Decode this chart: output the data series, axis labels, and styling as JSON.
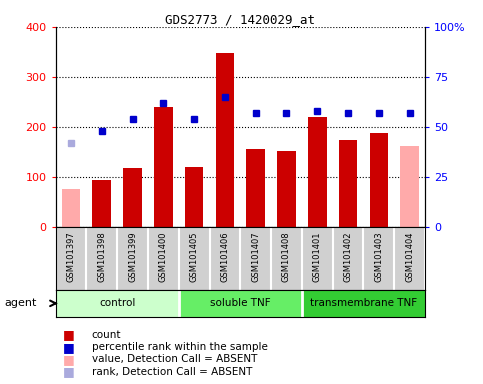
{
  "title": "GDS2773 / 1420029_at",
  "samples": [
    "GSM101397",
    "GSM101398",
    "GSM101399",
    "GSM101400",
    "GSM101405",
    "GSM101406",
    "GSM101407",
    "GSM101408",
    "GSM101401",
    "GSM101402",
    "GSM101403",
    "GSM101404"
  ],
  "count_values": [
    75,
    93,
    117,
    240,
    120,
    348,
    156,
    151,
    220,
    173,
    188,
    161
  ],
  "count_absent": [
    true,
    false,
    false,
    false,
    false,
    false,
    false,
    false,
    false,
    false,
    false,
    true
  ],
  "percentile_values": [
    42,
    48,
    54,
    62,
    54,
    65,
    57,
    57,
    58,
    57,
    57,
    57
  ],
  "percentile_absent": [
    true,
    false,
    false,
    false,
    false,
    false,
    false,
    false,
    false,
    false,
    false,
    false
  ],
  "groups": [
    {
      "label": "control",
      "start": 0,
      "end": 4,
      "color": "#ccffcc"
    },
    {
      "label": "soluble TNF",
      "start": 4,
      "end": 8,
      "color": "#66ee66"
    },
    {
      "label": "transmembrane TNF",
      "start": 8,
      "end": 12,
      "color": "#33cc33"
    }
  ],
  "ylim_left": [
    0,
    400
  ],
  "ylim_right": [
    0,
    100
  ],
  "left_yticks": [
    0,
    100,
    200,
    300,
    400
  ],
  "right_yticks": [
    0,
    25,
    50,
    75,
    100
  ],
  "right_yticklabels": [
    "0",
    "25",
    "50",
    "75",
    "100%"
  ],
  "bar_color_present": "#cc0000",
  "bar_color_absent": "#ffaaaa",
  "dot_color_present": "#0000cc",
  "dot_color_absent": "#aaaadd",
  "label_bg_color": "#d0d0d0",
  "plot_bg_color": "#ffffff",
  "col_div_color": "#ffffff"
}
